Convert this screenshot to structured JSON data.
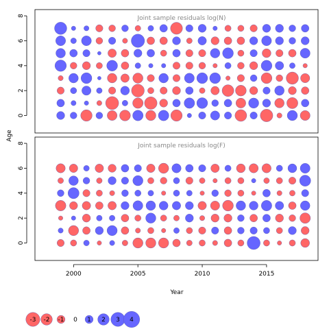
{
  "colors": {
    "negative": "#ff6666",
    "positive": "#6666ff",
    "bubble_stroke": "#5555aa",
    "panel_title": "#888888"
  },
  "chart_data": {
    "type": "scatter",
    "xlabel": "Year",
    "ylabel": "Age",
    "xlim": [
      1997,
      2019
    ],
    "ylim": [
      -1.4,
      8.5
    ],
    "x_ticks": [
      2000,
      2005,
      2010,
      2015
    ],
    "y_ticks": [
      0,
      2,
      4,
      6,
      8
    ],
    "years": [
      1999,
      2000,
      2001,
      2002,
      2003,
      2004,
      2005,
      2006,
      2007,
      2008,
      2009,
      2010,
      2011,
      2012,
      2013,
      2014,
      2015,
      2016,
      2017,
      2018
    ],
    "ages": [
      0,
      1,
      2,
      3,
      4,
      5,
      6,
      7
    ],
    "panels": [
      {
        "title": "Joint sample residuals log(N)",
        "residuals_by_age": [
          [
            1.0,
            0.7,
            -2.0,
            0.7,
            -1.5,
            -1.8,
            1.7,
            -1.6,
            1.7,
            -2.0,
            0.3,
            0.8,
            1.3,
            0.8,
            -2.1,
            0.8,
            -2.4,
            -0.4,
            1.6,
            -1.5
          ],
          [
            0.9,
            0.4,
            0.3,
            -0.4,
            -2.6,
            0.5,
            -1.7,
            -2.4,
            -1.0,
            0.9,
            1.7,
            1.8,
            0.7,
            0.9,
            -1.5,
            1.6,
            1.0,
            -1.4,
            -1.9,
            0.9
          ],
          [
            -0.8,
            0.6,
            1.3,
            0.5,
            -0.8,
            1.2,
            -2.5,
            -0.6,
            -0.8,
            -1.0,
            0.9,
            -0.5,
            -1.1,
            -2.1,
            -1.8,
            -1.0,
            0.8,
            1.4,
            -1.0,
            -0.9
          ],
          [
            -0.4,
            1.4,
            1.8,
            0.2,
            -1.4,
            -1.1,
            -1.6,
            -0.8,
            1.4,
            -0.8,
            1.5,
            1.8,
            1.8,
            -0.3,
            -0.8,
            0.7,
            -1.8,
            -0.7,
            -2.3,
            -1.3
          ],
          [
            2.0,
            -0.7,
            -1.0,
            -0.6,
            1.8,
            -0.9,
            0.5,
            0.3,
            0.3,
            -0.8,
            -0.8,
            -0.7,
            -0.3,
            0.6,
            -0.7,
            -1.0,
            1.8,
            1.1,
            0.5,
            -0.3
          ],
          [
            1.4,
            0.9,
            0.8,
            0.2,
            -1.1,
            -0.9,
            1.0,
            0.9,
            -0.6,
            0.9,
            -0.8,
            -0.8,
            1.4,
            1.8,
            -0.6,
            0.8,
            -1.2,
            -0.8,
            -0.9,
            1.5
          ],
          [
            1.5,
            0.5,
            1.5,
            -0.7,
            0.8,
            -0.4,
            2.7,
            -0.9,
            -0.9,
            1.0,
            -0.5,
            1.1,
            -1.0,
            -0.9,
            -0.9,
            1.0,
            1.5,
            1.0,
            0.7,
            1.0
          ],
          [
            2.3,
            0.3,
            0.4,
            -0.8,
            -0.7,
            0.7,
            -0.5,
            0.5,
            0.9,
            -2.2,
            0.8,
            1.0,
            0.3,
            -0.6,
            -0.6,
            -0.8,
            1.0,
            1.0,
            0.7,
            0.9
          ]
        ]
      },
      {
        "title": "Joint sample residuals log(F)",
        "residuals_by_age": [
          [
            -0.8,
            -0.6,
            0.5,
            -0.3,
            0.4,
            -0.5,
            -1.6,
            -1.6,
            -1.6,
            -0.9,
            -0.5,
            -0.6,
            -0.4,
            -0.9,
            -0.6,
            2.6,
            -0.6,
            -0.3,
            -0.6,
            -1.2
          ],
          [
            0.4,
            -1.6,
            -0.9,
            1.0,
            1.6,
            -0.9,
            -0.4,
            -0.6,
            -0.3,
            0.5,
            -0.6,
            -0.8,
            0.8,
            -0.9,
            0.7,
            0.8,
            0.6,
            -0.6,
            1.0,
            -1.0
          ],
          [
            -0.3,
            0.3,
            -1.0,
            0.5,
            0.5,
            -0.9,
            -0.6,
            1.6,
            -0.6,
            -0.5,
            1.0,
            -0.4,
            -1.0,
            -1.0,
            0.7,
            -0.9,
            0.9,
            -1.0,
            -0.7,
            -1.7
          ],
          [
            -1.7,
            -1.0,
            -1.1,
            -0.9,
            -1.1,
            1.0,
            1.5,
            1.4,
            1.2,
            1.1,
            1.0,
            -1.1,
            -1.3,
            -1.8,
            1.4,
            1.2,
            1.7,
            1.1,
            -0.9,
            1.4
          ],
          [
            0.7,
            1.9,
            -0.8,
            -0.6,
            -0.4,
            0.7,
            0.6,
            0.5,
            -0.3,
            0.6,
            0.5,
            -0.3,
            0.7,
            -0.7,
            -0.6,
            -0.3,
            0.9,
            -0.4,
            -0.5,
            0.8
          ],
          [
            -0.5,
            1.4,
            0.7,
            -0.5,
            1.0,
            0.8,
            1.6,
            -0.6,
            -0.7,
            0.6,
            -0.8,
            -0.5,
            -0.3,
            -0.6,
            -0.6,
            0.3,
            -0.5,
            -0.6,
            -0.8,
            1.9
          ],
          [
            -1.3,
            -1.1,
            0.5,
            -1.1,
            -1.0,
            0.9,
            0.8,
            -1.1,
            -1.6,
            1.3,
            0.9,
            0.8,
            -1.1,
            0.6,
            -1.2,
            -1.3,
            -1.3,
            0.6,
            1.2,
            1.5
          ],
          [
            0,
            0,
            0,
            0,
            0,
            0,
            0,
            0,
            0,
            0,
            0,
            0,
            0,
            0,
            0,
            0,
            0,
            0,
            0,
            0
          ]
        ]
      }
    ],
    "legend": {
      "entries": [
        {
          "label": "-3",
          "value": -3
        },
        {
          "label": "-2",
          "value": -2
        },
        {
          "label": "-1",
          "value": -1
        },
        {
          "label": "0",
          "value": 0
        },
        {
          "label": "1",
          "value": 1
        },
        {
          "label": "2",
          "value": 2
        },
        {
          "label": "3",
          "value": 3
        },
        {
          "label": "4",
          "value": 4
        }
      ],
      "placement": "bottom-left"
    }
  }
}
